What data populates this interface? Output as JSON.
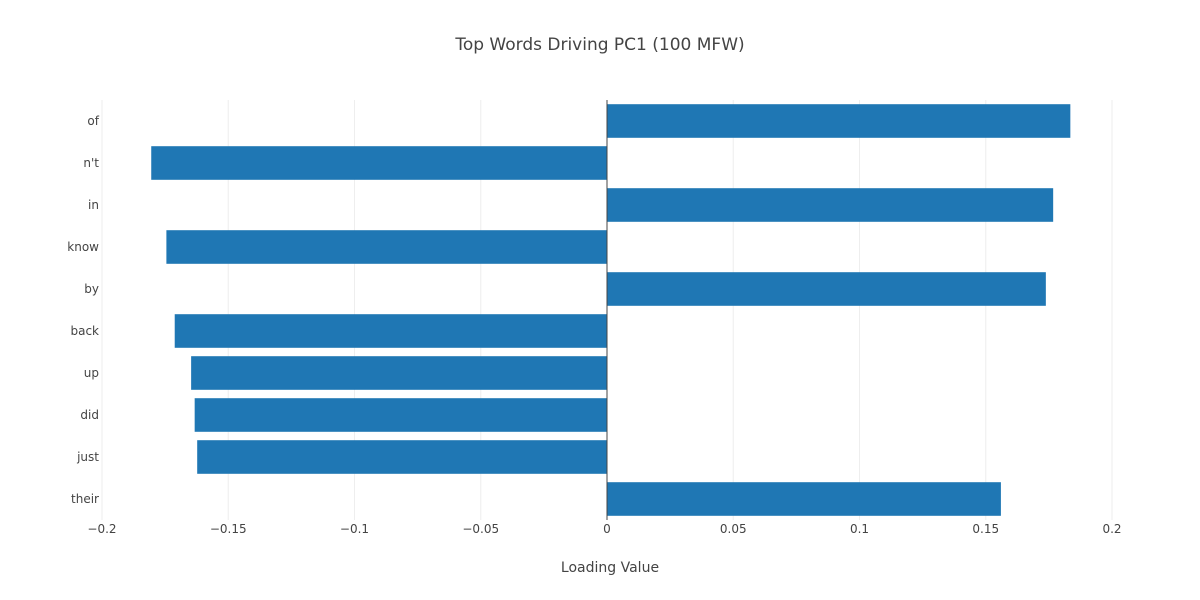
{
  "chart_data": {
    "type": "bar",
    "orientation": "horizontal",
    "title": "Top Words Driving PC1  (100 MFW)",
    "xlabel": "Loading Value",
    "ylabel": "",
    "categories": [
      "of",
      "n't",
      "in",
      "know",
      "by",
      "back",
      "up",
      "did",
      "just",
      "their"
    ],
    "values": [
      0.1835,
      -0.1805,
      0.1767,
      -0.1745,
      0.1738,
      -0.1712,
      -0.1647,
      -0.1633,
      -0.1623,
      0.156
    ],
    "xlim": [
      -0.2,
      0.2
    ],
    "xticks": [
      -0.2,
      -0.15,
      -0.1,
      -0.05,
      0,
      0.05,
      0.1,
      0.15,
      0.2
    ],
    "xtick_labels": [
      "−0.2",
      "−0.15",
      "−0.1",
      "−0.05",
      "0",
      "0.05",
      "0.1",
      "0.15",
      "0.2"
    ],
    "grid": true,
    "legend": "none",
    "colors": {
      "bar": "#1f77b4",
      "grid": "#eeeeee",
      "zero_line": "#444444",
      "text": "#444444"
    }
  }
}
